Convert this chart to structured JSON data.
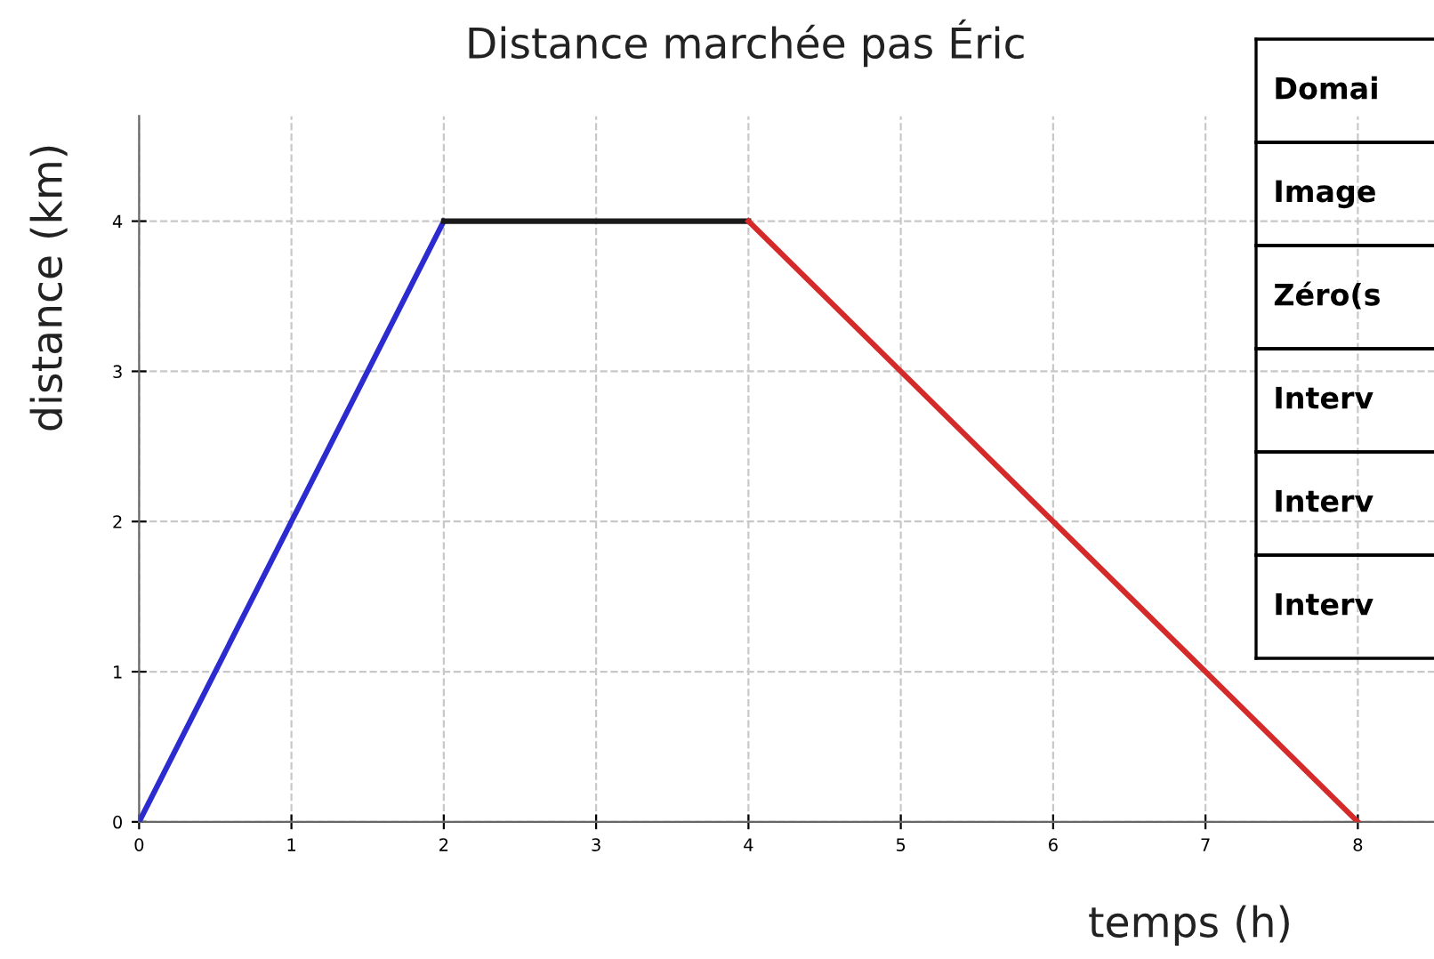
{
  "chart_data": {
    "type": "line",
    "title": "Distance marchée pas Éric",
    "xlabel": "temps (h)",
    "ylabel": "distance (km)",
    "series": [
      {
        "color": "#2b2bd0",
        "x": [
          0,
          2
        ],
        "values": [
          0,
          4
        ]
      },
      {
        "color": "#1a1a1a",
        "x": [
          2,
          4
        ],
        "values": [
          4,
          4
        ]
      },
      {
        "color": "#d42a2a",
        "x": [
          4,
          8
        ],
        "values": [
          4,
          0
        ]
      }
    ],
    "xlim": [
      0,
      8.5
    ],
    "ylim": [
      0,
      4.7
    ],
    "xticks": [
      0,
      1,
      2,
      3,
      4,
      5,
      6,
      7,
      8
    ],
    "yticks": [
      0,
      1,
      2,
      3,
      4
    ],
    "grid": true,
    "line_style": "solid",
    "marker": "none",
    "annotations": [
      "Domai",
      "Image",
      "Zéro(s",
      "Interv",
      "Interv",
      "Interv"
    ]
  }
}
